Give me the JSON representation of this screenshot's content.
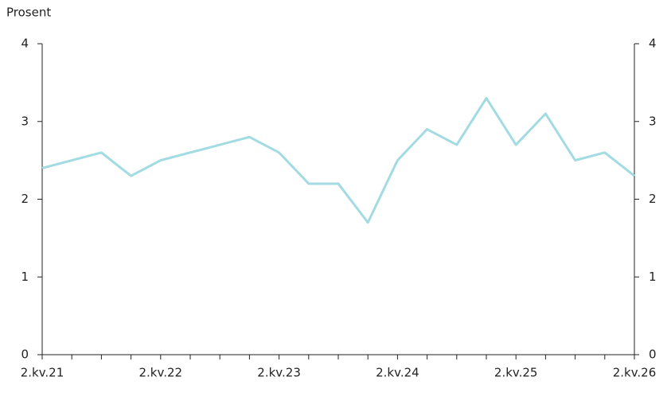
{
  "chart_data": {
    "type": "line",
    "y_label": "Prosent",
    "categories": [
      "2.kv.21",
      null,
      null,
      null,
      "2.kv.22",
      null,
      null,
      null,
      "2.kv.23",
      null,
      null,
      null,
      "2.kv.24",
      null,
      null,
      null,
      "2.kv.25",
      null,
      null,
      null,
      "2.kv.26"
    ],
    "series": [
      {
        "color": "#a3dbe3",
        "values": [
          2.4,
          2.5,
          2.6,
          2.3,
          2.5,
          2.6,
          2.7,
          2.8,
          2.6,
          2.2,
          2.2,
          1.7,
          2.5,
          2.9,
          2.7,
          3.3,
          2.7,
          3.1,
          2.5,
          2.6,
          2.3
        ]
      }
    ],
    "ylim": [
      0,
      4
    ],
    "yticks": [
      0,
      1,
      2,
      3,
      4
    ],
    "y2lim": [
      0,
      4
    ],
    "y2ticks": [
      0,
      1,
      2,
      3,
      4
    ]
  }
}
